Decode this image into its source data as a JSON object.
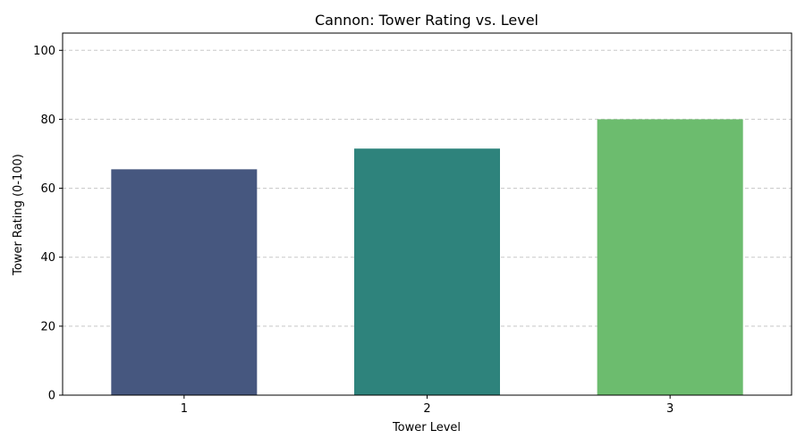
{
  "chart_data": {
    "type": "bar",
    "title": "Cannon: Tower Rating vs. Level",
    "xlabel": "Tower Level",
    "ylabel": "Tower Rating (0-100)",
    "categories": [
      "1",
      "2",
      "3"
    ],
    "values": [
      65.5,
      71.5,
      80
    ],
    "colors": [
      "#46577f",
      "#2e837c",
      "#6cbc6e"
    ],
    "ylim": [
      0,
      105
    ],
    "yticks": [
      0,
      20,
      40,
      60,
      80,
      100
    ],
    "grid": true
  }
}
